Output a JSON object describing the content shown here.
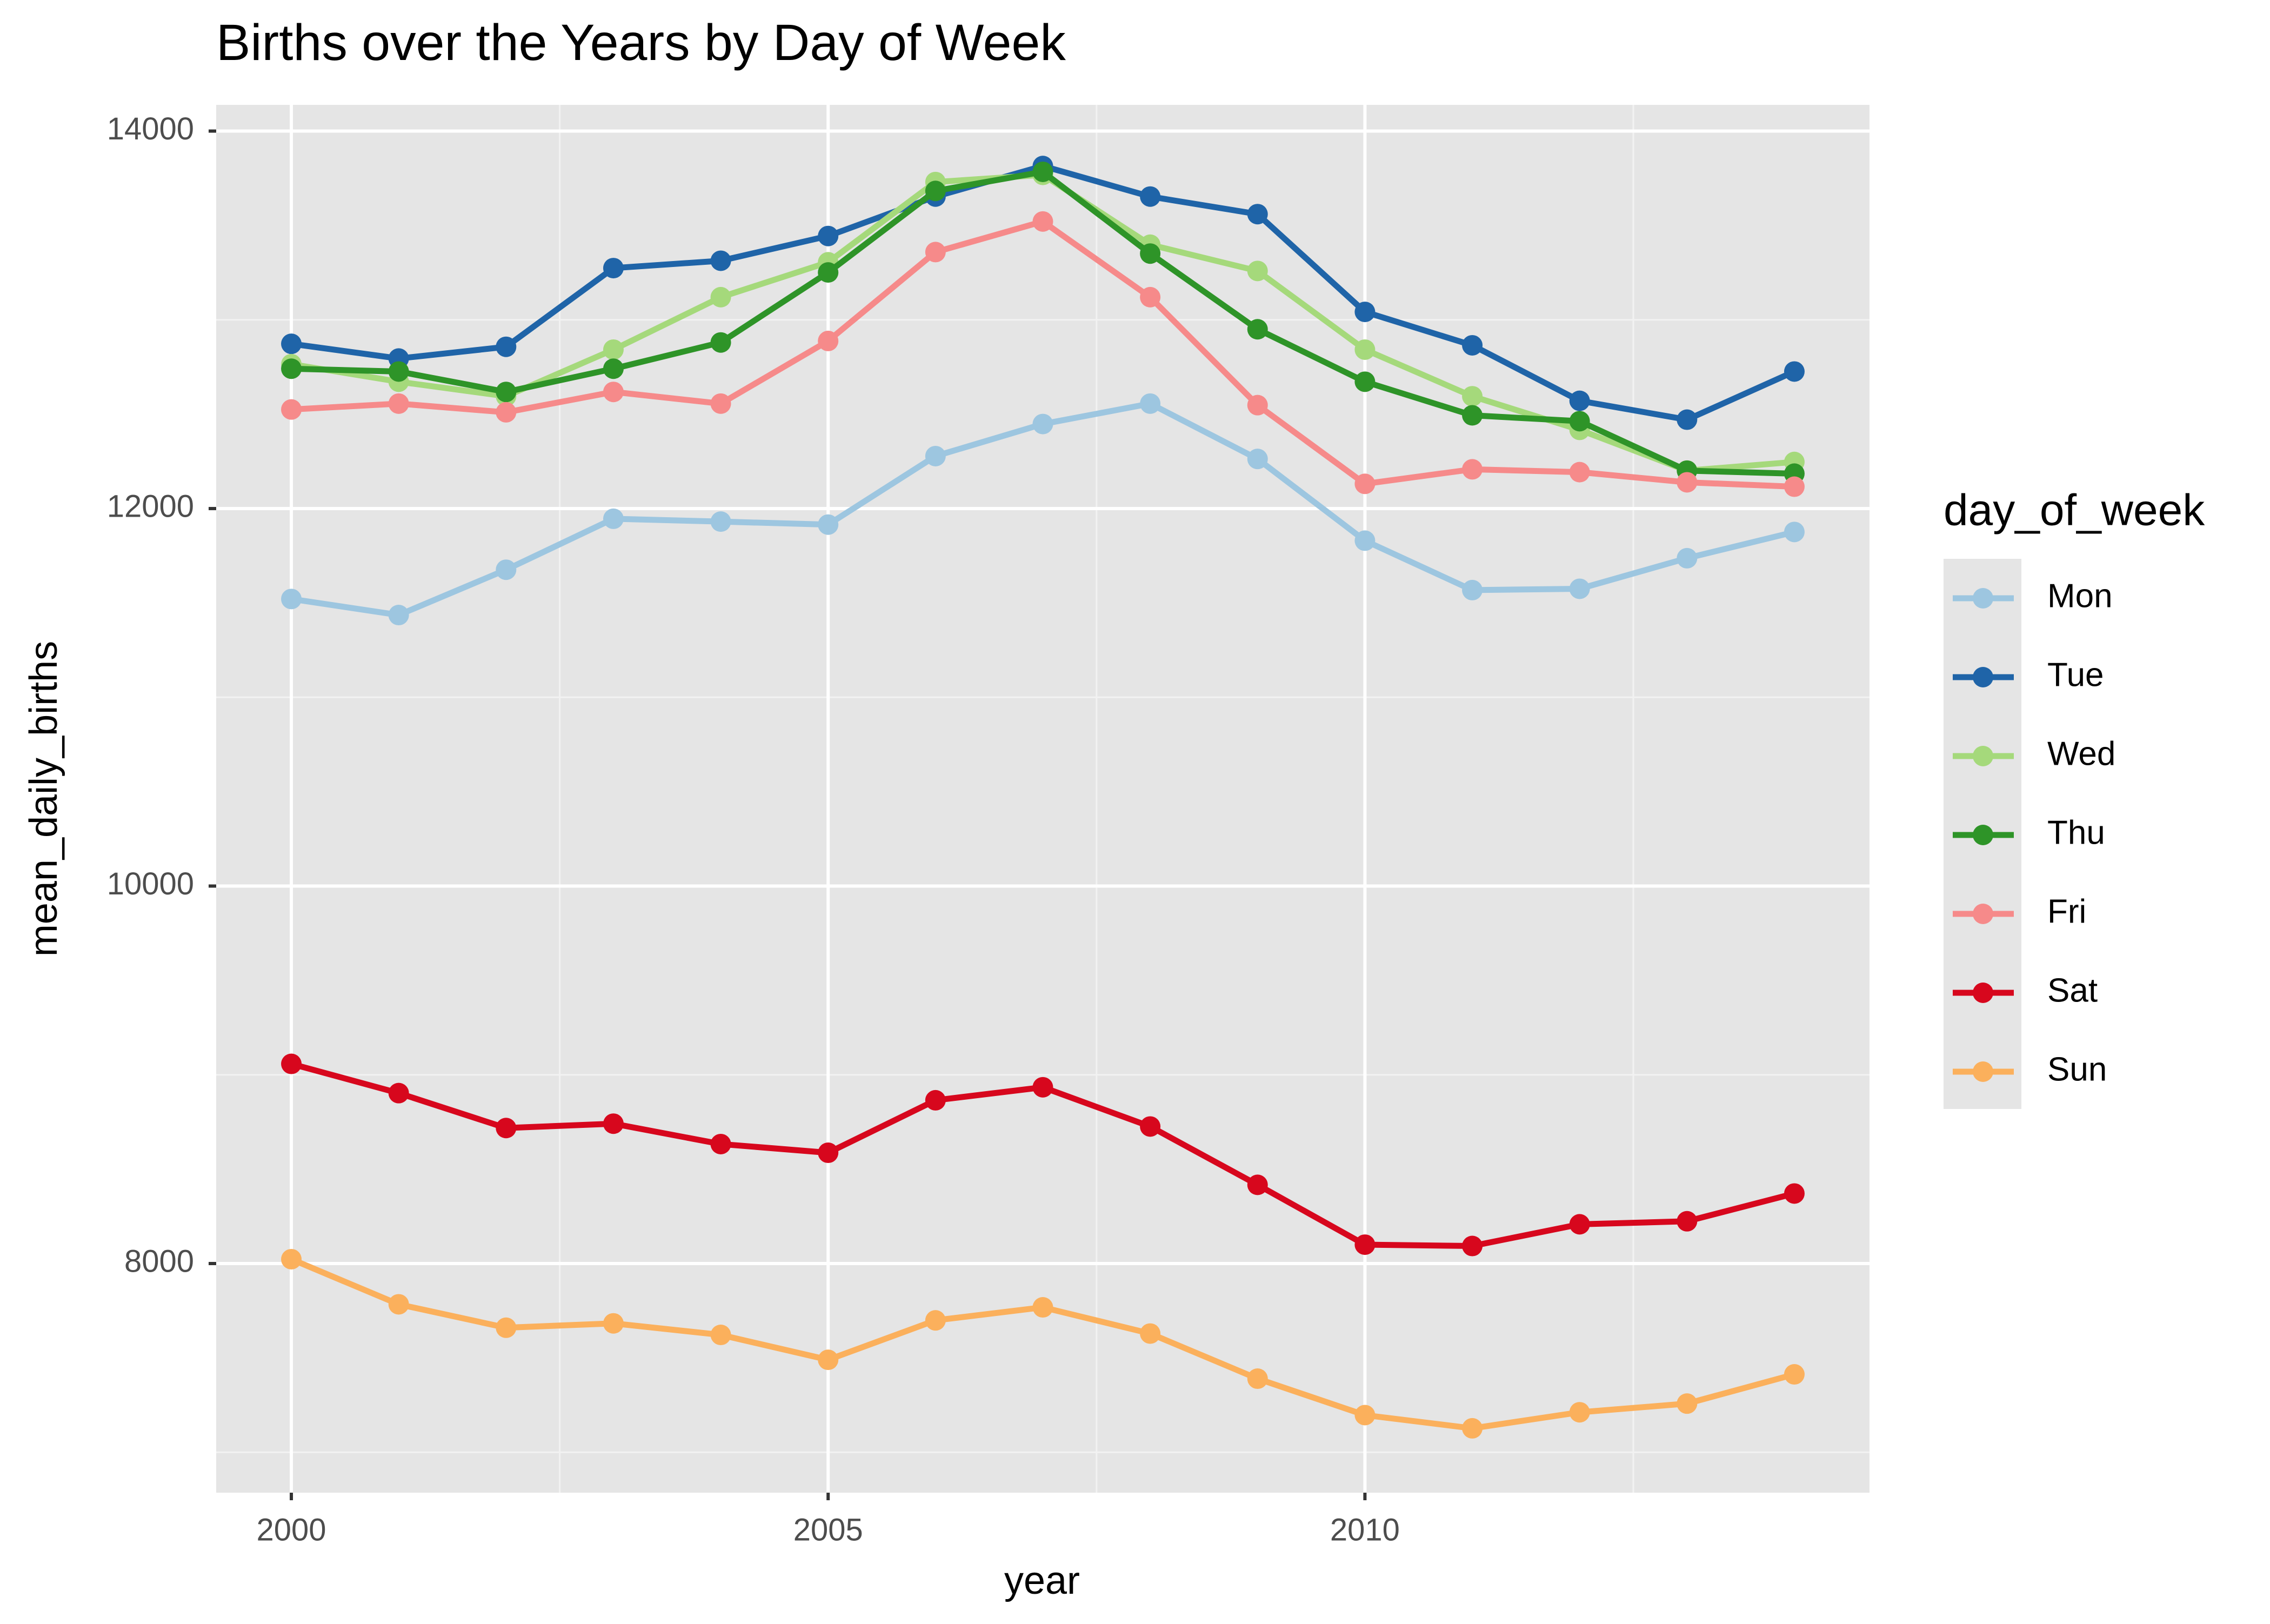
{
  "chart_data": {
    "type": "line",
    "title": "Births over the Years by Day of Week",
    "x_label": "year",
    "y_label": "mean_daily_births",
    "legend_title": "day_of_week",
    "legend_position": "right",
    "grid": true,
    "x": [
      2000,
      2001,
      2002,
      2003,
      2004,
      2005,
      2006,
      2007,
      2008,
      2009,
      2010,
      2011,
      2012,
      2013,
      2014
    ],
    "xlim": [
      1999.3,
      2014.7
    ],
    "xticks": [
      2000,
      2005,
      2010
    ],
    "ylim": [
      6786,
      14139
    ],
    "yticks": [
      8000,
      10000,
      12000,
      14000
    ],
    "series": [
      {
        "name": "Mon",
        "color": "#9dc6e0",
        "values": [
          11521,
          11436,
          11676,
          11946,
          11931,
          11915,
          12278,
          12448,
          12556,
          12263,
          11830,
          11568,
          11575,
          11737,
          11876
        ]
      },
      {
        "name": "Tue",
        "color": "#1f64a8",
        "values": [
          12873,
          12795,
          12857,
          13274,
          13313,
          13444,
          13653,
          13815,
          13653,
          13560,
          13042,
          12865,
          12571,
          12471,
          12726
        ]
      },
      {
        "name": "Wed",
        "color": "#a5d97b",
        "values": [
          12765,
          12672,
          12595,
          12842,
          13120,
          13305,
          13730,
          13768,
          13398,
          13259,
          12842,
          12595,
          12417,
          12201,
          12247
        ]
      },
      {
        "name": "Thu",
        "color": "#2e9428",
        "values": [
          12741,
          12726,
          12618,
          12741,
          12880,
          13251,
          13683,
          13784,
          13351,
          12950,
          12672,
          12494,
          12463,
          12201,
          12185
        ]
      },
      {
        "name": "Fri",
        "color": "#f68a8a",
        "values": [
          12525,
          12556,
          12510,
          12618,
          12556,
          12888,
          13359,
          13521,
          13120,
          12548,
          12131,
          12208,
          12193,
          12139,
          12116
        ]
      },
      {
        "name": "Sat",
        "color": "#d7071d",
        "values": [
          9058,
          8903,
          8718,
          8741,
          8633,
          8587,
          8865,
          8934,
          8726,
          8417,
          8100,
          8093,
          8208,
          8224,
          8371
        ]
      },
      {
        "name": "Sun",
        "color": "#fbb05c",
        "values": [
          8023,
          7784,
          7660,
          7683,
          7622,
          7490,
          7699,
          7768,
          7629,
          7390,
          7197,
          7127,
          7212,
          7258,
          7413
        ]
      }
    ]
  }
}
